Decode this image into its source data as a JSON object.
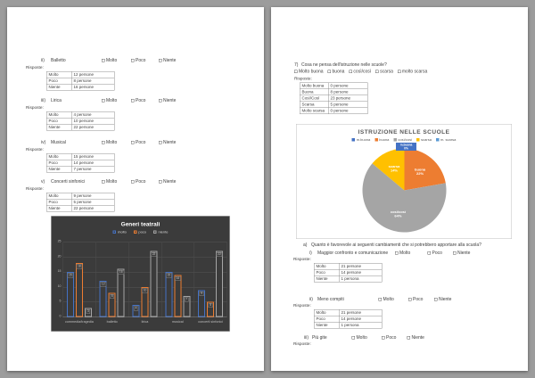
{
  "window": {
    "background": "#9c9c9c"
  },
  "left_page": {
    "risposte_label": "Risposte:",
    "questions": [
      {
        "num": "ii)",
        "label": "Balletto",
        "options": [
          "Molto",
          "Poco",
          "Niente"
        ],
        "table": [
          [
            "Molto",
            "12 persone"
          ],
          [
            "Poco",
            "8 persone"
          ],
          [
            "Niente",
            "16 persone"
          ]
        ]
      },
      {
        "num": "iii)",
        "label": "Lirica",
        "options": [
          "Molto",
          "Poco",
          "Niente"
        ],
        "table": [
          [
            "Molto",
            "4 persone"
          ],
          [
            "Poco",
            "10 persone"
          ],
          [
            "Niente",
            "22 persone"
          ]
        ]
      },
      {
        "num": "iv)",
        "label": "Musical",
        "options": [
          "Molto",
          "Poco",
          "Niente"
        ],
        "table": [
          [
            "Molto",
            "15 persone"
          ],
          [
            "Poco",
            "14 persone"
          ],
          [
            "Niente",
            "7 persone"
          ]
        ]
      },
      {
        "num": "v)",
        "label": "Concerti sinfonici",
        "options": [
          "Molto",
          "Poco",
          "Niente"
        ],
        "table": [
          [
            "Molto",
            "9 persone"
          ],
          [
            "Poco",
            "5 persone"
          ],
          [
            "Niente",
            "22 persone"
          ]
        ]
      }
    ]
  },
  "right_page": {
    "risposte_label": "Risposte:",
    "q7": {
      "num": "7)",
      "text": "Cosa ne pensa dell'istruzione nelle scuole?",
      "options": [
        "Molto buona",
        "buona",
        "così/così",
        "scarsa",
        "molto scarsa"
      ],
      "table": [
        [
          "Molto buona",
          "0 persone"
        ],
        [
          "Buona",
          "8 persone"
        ],
        [
          "Così/Così",
          "23 persone"
        ],
        [
          "Scarsa",
          "5 persone"
        ],
        [
          "Molto scarsa",
          "0 persone"
        ]
      ]
    },
    "qa": {
      "num": "a)",
      "text": "Quanto è favorevole ai seguenti cambiamenti che si potrebbero apportare alla scuola?",
      "subs": [
        {
          "num": "i)",
          "label": "Maggior confronto e comunicazione",
          "options": [
            "Molto",
            "Poco",
            "Niente"
          ],
          "table": [
            [
              "Molto",
              "21 persone"
            ],
            [
              "Poco",
              "14 persone"
            ],
            [
              "Niente",
              "1 persona"
            ]
          ]
        },
        {
          "num": "ii)",
          "label": "Meno compiti",
          "options": [
            "Molto",
            "Poco",
            "Niente"
          ],
          "table": [
            [
              "Molto",
              "21 persone"
            ],
            [
              "Poco",
              "14 persone"
            ],
            [
              "Niente",
              "1 persona"
            ]
          ]
        },
        {
          "num": "iii)",
          "label": "Più gite",
          "options": [
            "Molto",
            "Poco",
            "Niente"
          ]
        }
      ]
    }
  },
  "chart_data": [
    {
      "type": "bar",
      "title": "Generi teatrali",
      "categories": [
        "commedia/tragedia",
        "balletto",
        "lirica",
        "musical",
        "concerti sinfonici"
      ],
      "series": [
        {
          "name": "molto",
          "color": "#4472C4",
          "values": [
            15,
            12,
            4,
            15,
            9
          ]
        },
        {
          "name": "poco",
          "color": "#ED7D31",
          "values": [
            18,
            8,
            10,
            14,
            5
          ]
        },
        {
          "name": "niente",
          "color": "#A5A5A5",
          "values": [
            3,
            16,
            22,
            7,
            22
          ]
        }
      ],
      "ylim": [
        0,
        25
      ],
      "ytick_step": 5,
      "grid": true,
      "legend_position": "top",
      "data_labels": true,
      "background": "#3B3B3B"
    },
    {
      "type": "pie",
      "title": "ISTRUZIONE NELLE SCUOLE",
      "labels": [
        "m.buona",
        "buona",
        "così/così",
        "scarsa",
        "m. scarsa"
      ],
      "values": [
        0,
        8,
        23,
        5,
        0
      ],
      "percents": [
        "0%",
        "22%",
        "64%",
        "14%",
        "0%"
      ],
      "colors": [
        "#4472C4",
        "#ED7D31",
        "#A5A5A5",
        "#FFC000",
        "#5B9BD5"
      ],
      "legend_position": "top"
    }
  ]
}
